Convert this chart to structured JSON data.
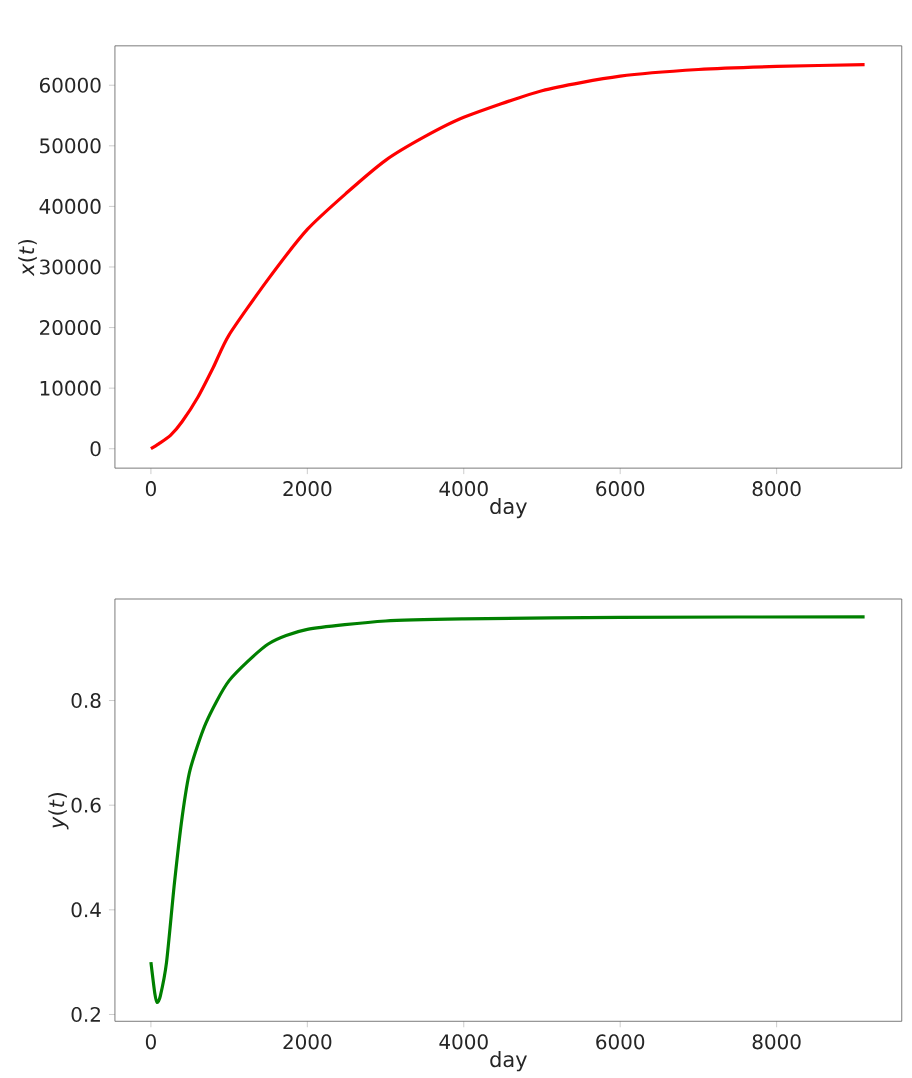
{
  "chart_data": [
    {
      "type": "line",
      "xlabel": "day",
      "ylabel": "*x*(*t*)",
      "x": [
        0,
        100,
        250,
        400,
        600,
        800,
        1000,
        1500,
        2000,
        2500,
        3000,
        3500,
        4000,
        5000,
        6000,
        7000,
        8000,
        9125
      ],
      "series": [
        {
          "color": "#ff0000",
          "values": [
            0,
            800,
            2200,
            4500,
            8500,
            13500,
            18800,
            28000,
            36200,
            42200,
            47600,
            51500,
            54700,
            59100,
            61500,
            62600,
            63100,
            63400
          ]
        }
      ],
      "xlim": [
        -460,
        9600
      ],
      "xticks": [
        0,
        2000,
        4000,
        6000,
        8000
      ],
      "ylim": [
        -3200,
        66500
      ],
      "yticks": [
        0,
        10000,
        20000,
        30000,
        40000,
        50000,
        60000
      ]
    },
    {
      "type": "line",
      "xlabel": "day",
      "ylabel": "*y*(*t*)",
      "x": [
        0,
        50,
        80,
        120,
        200,
        300,
        400,
        500,
        700,
        1000,
        1500,
        2000,
        3000,
        4000,
        6000,
        9125
      ],
      "series": [
        {
          "color": "#008000",
          "values": [
            0.3,
            0.24,
            0.223,
            0.235,
            0.3,
            0.45,
            0.578,
            0.667,
            0.756,
            0.838,
            0.908,
            0.936,
            0.952,
            0.956,
            0.959,
            0.96
          ]
        }
      ],
      "xlim": [
        -460,
        9600
      ],
      "xticks": [
        0,
        2000,
        4000,
        6000,
        8000
      ],
      "ylim": [
        0.187,
        0.994
      ],
      "yticks": [
        0.2,
        0.4,
        0.6,
        0.8
      ]
    }
  ]
}
